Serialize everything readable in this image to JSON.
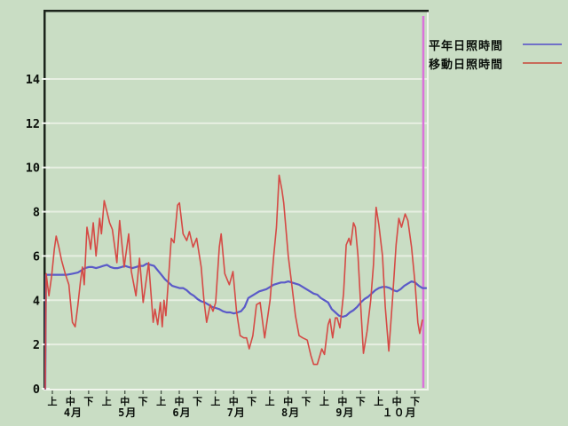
{
  "legend": {
    "entries": [
      {
        "label": "平年日照時間",
        "color": "#7070c8"
      },
      {
        "label": "移動日照時間",
        "color": "#c86a5a"
      }
    ]
  },
  "colors": {
    "background": "#c9ddc4",
    "gridline": "#e7efe2",
    "border_dark": "#1c241c",
    "border_light": "#f0f5ec",
    "tick_dark": "#3c4a3c",
    "tick_light": "#f2f6f0",
    "current_marker": "#db72db",
    "series_normal": "#5a5ac8",
    "series_moving": "#d54a45",
    "label_text": "#0a0f0a"
  },
  "chart_data": {
    "type": "line",
    "x_axis": {
      "unit": "day_from_april_1",
      "months": [
        "4月",
        "5月",
        "6月",
        "7月",
        "8月",
        "9月",
        "１０月"
      ],
      "period_labels": [
        "上",
        "中",
        "下"
      ]
    },
    "y_axis": {
      "ticks": [
        0,
        2,
        4,
        6,
        8,
        10,
        12,
        14
      ]
    },
    "ylim": [
      0,
      17.1
    ],
    "grid": "horizontal-only",
    "legend_position": "outside-top-right",
    "current_marker_day": 208.5,
    "series": [
      {
        "name": "平年日照時間",
        "color": "#5a5ac8",
        "width": 2.2,
        "points": [
          [
            0,
            0
          ],
          [
            0.4,
            5.15
          ],
          [
            3,
            5.15
          ],
          [
            6,
            5.15
          ],
          [
            9,
            5.15
          ],
          [
            12,
            5.15
          ],
          [
            15,
            5.2
          ],
          [
            18,
            5.25
          ],
          [
            20,
            5.35
          ],
          [
            22,
            5.45
          ],
          [
            24,
            5.5
          ],
          [
            26,
            5.5
          ],
          [
            28,
            5.45
          ],
          [
            30,
            5.5
          ],
          [
            32,
            5.55
          ],
          [
            34,
            5.6
          ],
          [
            36,
            5.5
          ],
          [
            38,
            5.45
          ],
          [
            40,
            5.45
          ],
          [
            42,
            5.5
          ],
          [
            44,
            5.55
          ],
          [
            46,
            5.5
          ],
          [
            48,
            5.45
          ],
          [
            50,
            5.5
          ],
          [
            52,
            5.55
          ],
          [
            54,
            5.55
          ],
          [
            56,
            5.65
          ],
          [
            58,
            5.6
          ],
          [
            60,
            5.55
          ],
          [
            62,
            5.35
          ],
          [
            64,
            5.15
          ],
          [
            66,
            4.95
          ],
          [
            68,
            4.8
          ],
          [
            70,
            4.65
          ],
          [
            72,
            4.6
          ],
          [
            74,
            4.55
          ],
          [
            76,
            4.55
          ],
          [
            78,
            4.45
          ],
          [
            80,
            4.3
          ],
          [
            82,
            4.2
          ],
          [
            84,
            4.05
          ],
          [
            86,
            3.95
          ],
          [
            88,
            3.9
          ],
          [
            90,
            3.8
          ],
          [
            92,
            3.7
          ],
          [
            94,
            3.65
          ],
          [
            96,
            3.6
          ],
          [
            98,
            3.5
          ],
          [
            100,
            3.45
          ],
          [
            102,
            3.45
          ],
          [
            104,
            3.4
          ],
          [
            106,
            3.45
          ],
          [
            108,
            3.5
          ],
          [
            110,
            3.7
          ],
          [
            112,
            4.1
          ],
          [
            114,
            4.2
          ],
          [
            116,
            4.3
          ],
          [
            118,
            4.4
          ],
          [
            120,
            4.45
          ],
          [
            122,
            4.5
          ],
          [
            124,
            4.6
          ],
          [
            126,
            4.7
          ],
          [
            128,
            4.75
          ],
          [
            130,
            4.8
          ],
          [
            132,
            4.8
          ],
          [
            134,
            4.85
          ],
          [
            136,
            4.8
          ],
          [
            138,
            4.75
          ],
          [
            140,
            4.7
          ],
          [
            142,
            4.6
          ],
          [
            144,
            4.5
          ],
          [
            146,
            4.4
          ],
          [
            148,
            4.3
          ],
          [
            150,
            4.25
          ],
          [
            152,
            4.1
          ],
          [
            154,
            4.0
          ],
          [
            156,
            3.9
          ],
          [
            158,
            3.6
          ],
          [
            160,
            3.45
          ],
          [
            162,
            3.3
          ],
          [
            164,
            3.25
          ],
          [
            166,
            3.3
          ],
          [
            168,
            3.45
          ],
          [
            170,
            3.55
          ],
          [
            172,
            3.7
          ],
          [
            174,
            3.9
          ],
          [
            176,
            4.05
          ],
          [
            178,
            4.15
          ],
          [
            180,
            4.3
          ],
          [
            182,
            4.45
          ],
          [
            184,
            4.55
          ],
          [
            186,
            4.6
          ],
          [
            188,
            4.6
          ],
          [
            190,
            4.55
          ],
          [
            192,
            4.45
          ],
          [
            194,
            4.4
          ],
          [
            196,
            4.5
          ],
          [
            198,
            4.65
          ],
          [
            200,
            4.75
          ],
          [
            202,
            4.85
          ],
          [
            204,
            4.8
          ],
          [
            206,
            4.65
          ],
          [
            208,
            4.55
          ],
          [
            210,
            4.55
          ]
        ]
      },
      {
        "name": "移動日照時間",
        "color": "#d54a45",
        "width": 1.6,
        "points": [
          [
            0,
            0
          ],
          [
            0.5,
            5.2
          ],
          [
            2,
            4.2
          ],
          [
            3.5,
            5.1
          ],
          [
            5,
            6.3
          ],
          [
            6,
            6.9
          ],
          [
            7.5,
            6.4
          ],
          [
            9,
            5.8
          ],
          [
            11,
            5.2
          ],
          [
            13,
            4.7
          ],
          [
            15,
            3.0
          ],
          [
            16.5,
            2.8
          ],
          [
            18,
            3.8
          ],
          [
            19.5,
            4.9
          ],
          [
            20.5,
            5.5
          ],
          [
            21.5,
            4.7
          ],
          [
            23,
            7.3
          ],
          [
            24.5,
            6.6
          ],
          [
            25,
            6.3
          ],
          [
            26.5,
            7.5
          ],
          [
            28,
            6.0
          ],
          [
            30,
            7.7
          ],
          [
            31,
            7.0
          ],
          [
            32.5,
            8.5
          ],
          [
            34,
            8.0
          ],
          [
            35.5,
            7.5
          ],
          [
            37,
            7.2
          ],
          [
            39.5,
            5.7
          ],
          [
            41,
            7.6
          ],
          [
            43.5,
            5.5
          ],
          [
            46,
            7.0
          ],
          [
            47.5,
            5.3
          ],
          [
            50,
            4.2
          ],
          [
            52,
            5.9
          ],
          [
            54,
            3.9
          ],
          [
            57,
            5.7
          ],
          [
            59.5,
            3.0
          ],
          [
            60.5,
            3.6
          ],
          [
            62,
            2.9
          ],
          [
            63.5,
            3.9
          ],
          [
            64.5,
            2.8
          ],
          [
            65.5,
            4.0
          ],
          [
            66.5,
            3.3
          ],
          [
            68,
            5.0
          ],
          [
            69.5,
            6.8
          ],
          [
            71,
            6.6
          ],
          [
            73,
            8.3
          ],
          [
            74,
            8.4
          ],
          [
            76,
            7.0
          ],
          [
            78,
            6.7
          ],
          [
            79.5,
            7.1
          ],
          [
            81.5,
            6.4
          ],
          [
            83.5,
            6.8
          ],
          [
            86,
            5.5
          ],
          [
            87.5,
            4.0
          ],
          [
            89,
            3.0
          ],
          [
            91,
            3.8
          ],
          [
            92.5,
            3.5
          ],
          [
            94,
            3.9
          ],
          [
            96,
            6.4
          ],
          [
            97,
            7.0
          ],
          [
            99,
            5.2
          ],
          [
            101.5,
            4.7
          ],
          [
            103.5,
            5.3
          ],
          [
            105.5,
            3.5
          ],
          [
            107.5,
            2.4
          ],
          [
            109.5,
            2.3
          ],
          [
            111,
            2.3
          ],
          [
            112.5,
            1.8
          ],
          [
            114.5,
            2.4
          ],
          [
            116.5,
            3.8
          ],
          [
            118.5,
            3.9
          ],
          [
            121,
            2.3
          ],
          [
            124,
            4.0
          ],
          [
            126,
            6.0
          ],
          [
            127.5,
            7.3
          ],
          [
            129,
            9.65
          ],
          [
            130.5,
            9.0
          ],
          [
            131.5,
            8.4
          ],
          [
            134,
            6.0
          ],
          [
            136,
            4.7
          ],
          [
            138,
            3.3
          ],
          [
            140,
            2.4
          ],
          [
            142,
            2.3
          ],
          [
            144.5,
            2.2
          ],
          [
            146.5,
            1.5
          ],
          [
            148,
            1.1
          ],
          [
            150,
            1.1
          ],
          [
            152.5,
            1.8
          ],
          [
            154,
            1.55
          ],
          [
            156,
            2.9
          ],
          [
            157,
            3.15
          ],
          [
            158.5,
            2.3
          ],
          [
            160,
            3.2
          ],
          [
            161,
            3.2
          ],
          [
            162.5,
            2.75
          ],
          [
            164.5,
            4.3
          ],
          [
            166,
            6.5
          ],
          [
            167.5,
            6.8
          ],
          [
            168.5,
            6.5
          ],
          [
            170,
            7.5
          ],
          [
            171,
            7.3
          ],
          [
            172.5,
            6.0
          ],
          [
            174,
            3.7
          ],
          [
            175.5,
            1.6
          ],
          [
            177.5,
            2.6
          ],
          [
            179.5,
            4.0
          ],
          [
            181,
            5.6
          ],
          [
            182.5,
            8.2
          ],
          [
            184,
            7.4
          ],
          [
            186,
            6.0
          ],
          [
            187.5,
            3.7
          ],
          [
            189.5,
            1.7
          ],
          [
            191.5,
            4.0
          ],
          [
            193.5,
            6.5
          ],
          [
            195,
            7.7
          ],
          [
            196.5,
            7.3
          ],
          [
            198.5,
            7.9
          ],
          [
            200,
            7.6
          ],
          [
            202,
            6.4
          ],
          [
            204,
            4.7
          ],
          [
            205.5,
            3.0
          ],
          [
            206.5,
            2.5
          ],
          [
            208,
            3.1
          ]
        ]
      }
    ]
  }
}
